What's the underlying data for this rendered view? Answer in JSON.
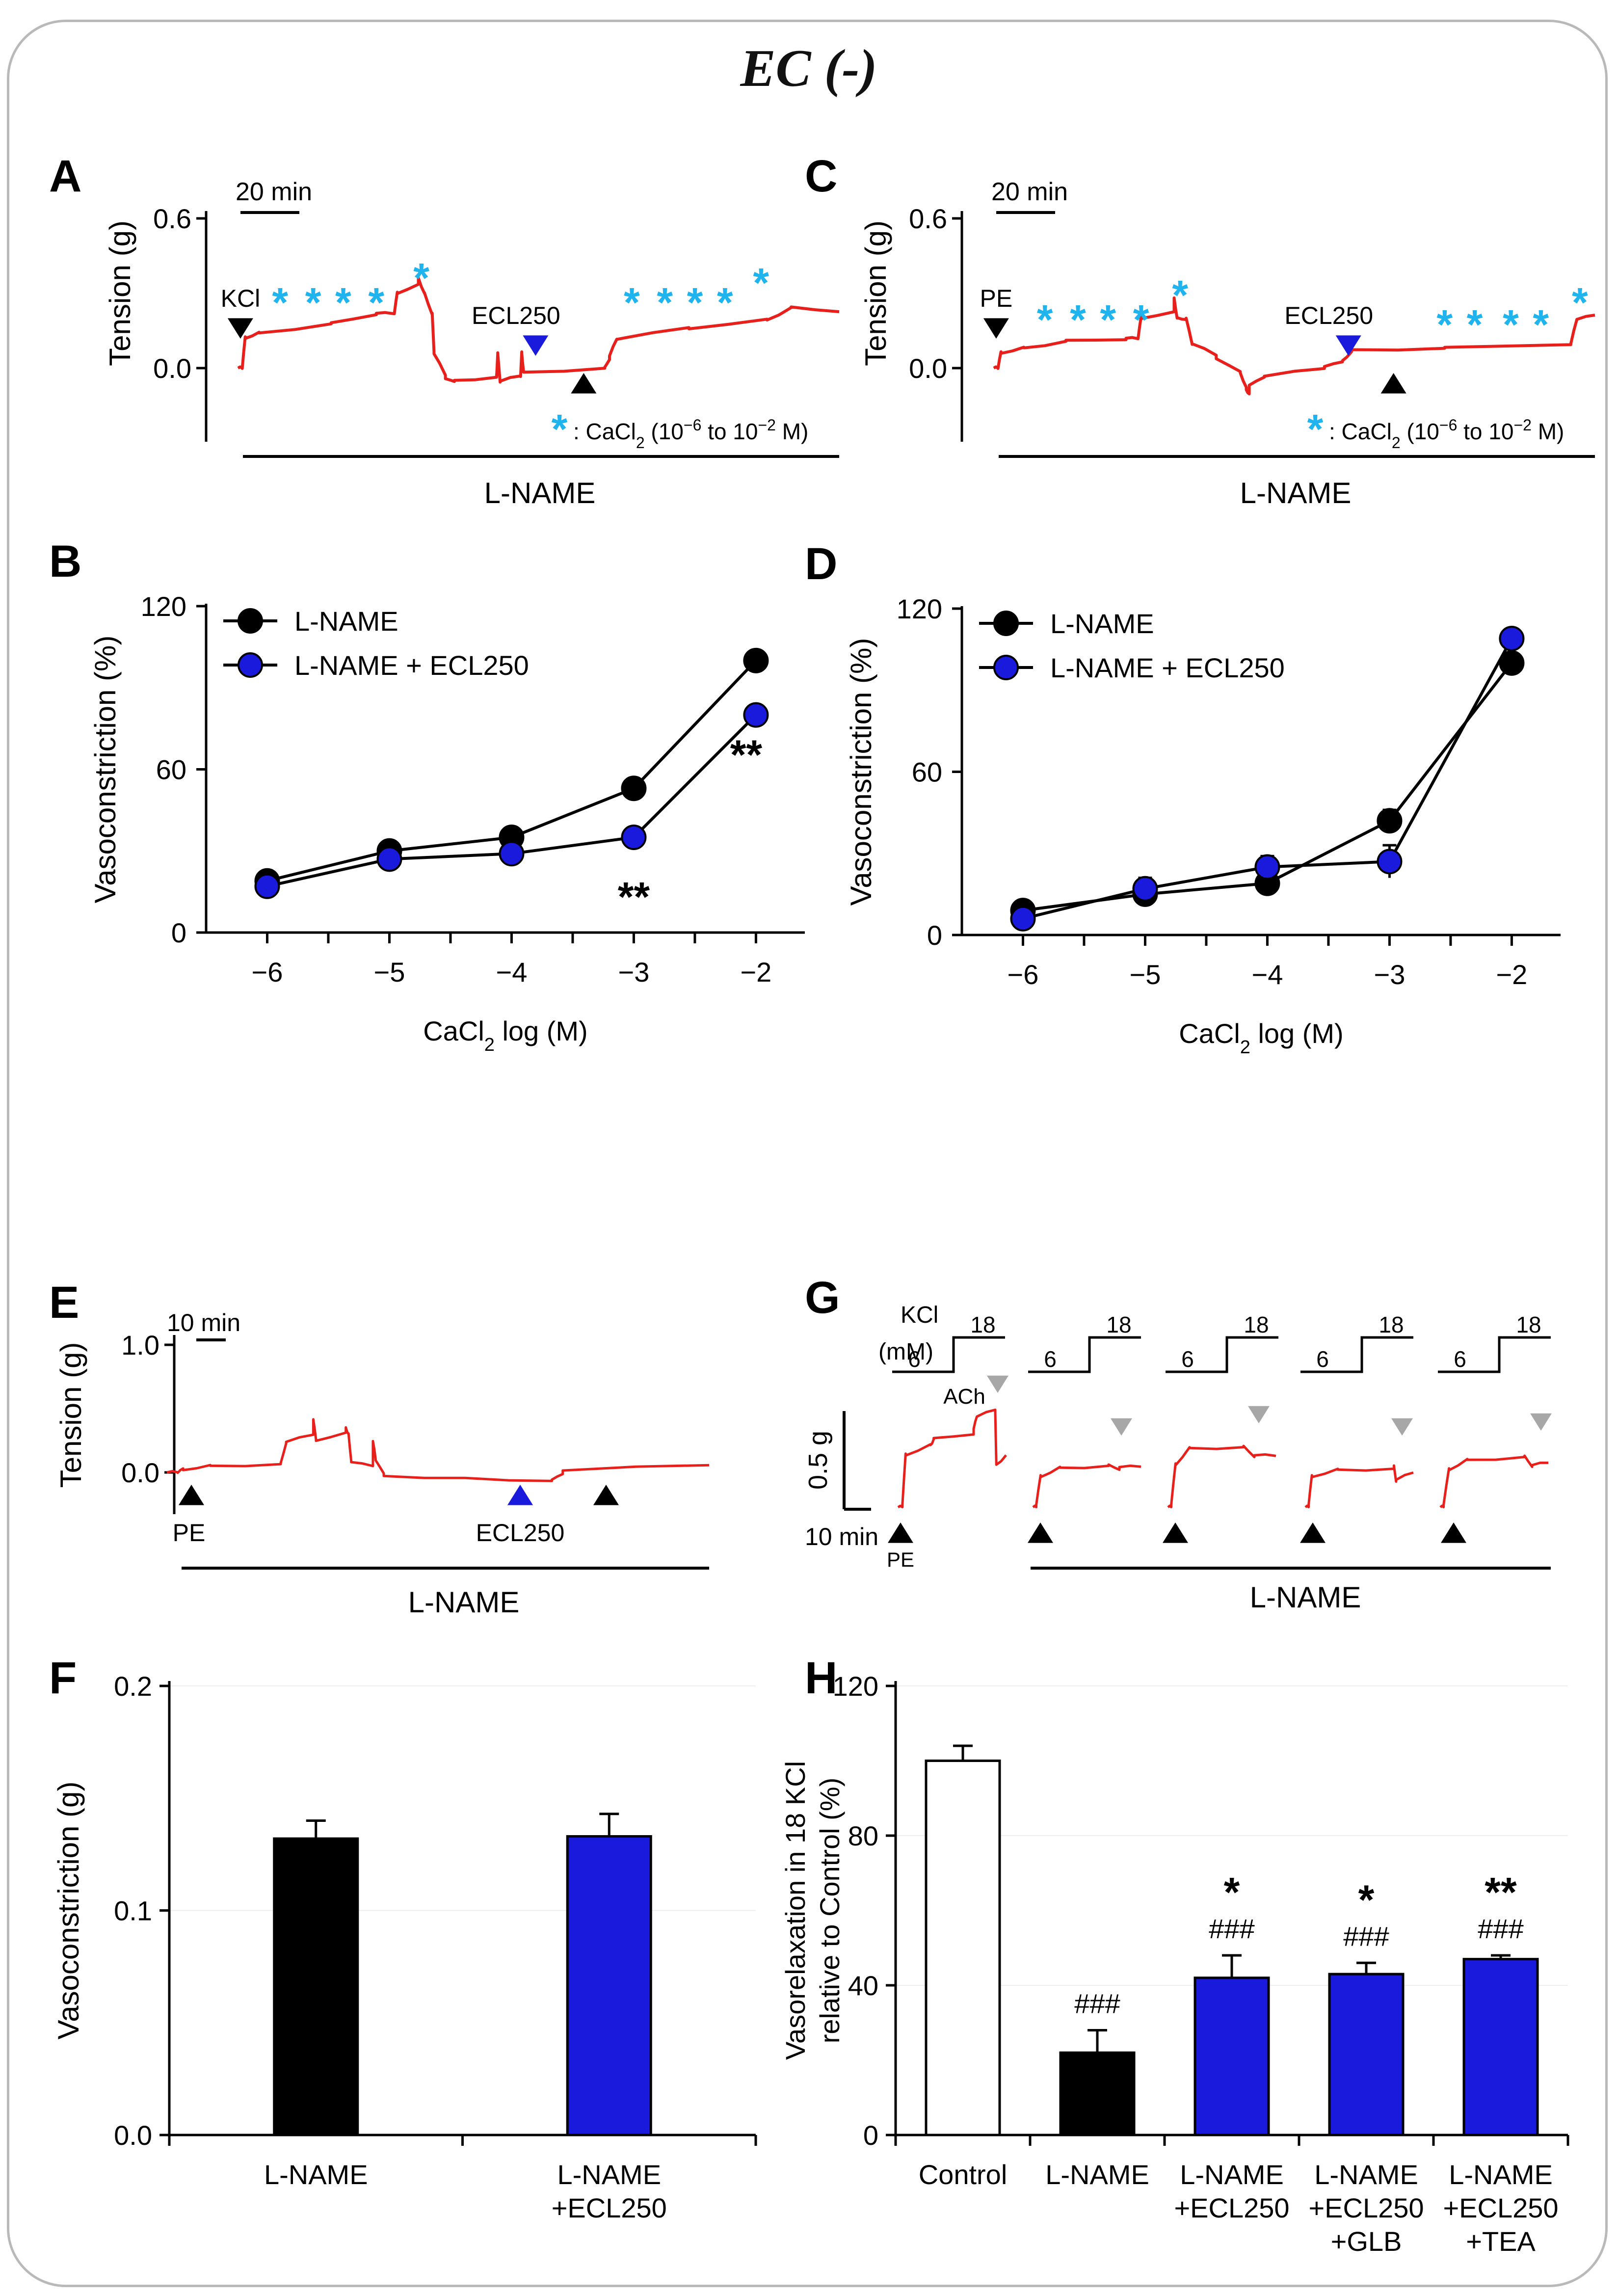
{
  "title": "EC (-)",
  "colors": {
    "red": "#e8201c",
    "blue": "#1a1adc",
    "cyan": "#1fb4ee",
    "black": "#000000",
    "gray": "#a7a7a7"
  },
  "panel_A": {
    "letter": "A",
    "ylabel": "Tension (g)",
    "yticks": [
      "0.6",
      "0.0"
    ],
    "scalebar": "20 min",
    "stim_label": "KCl",
    "drug_label": "ECL250",
    "star": "*",
    "note_prefix": ": CaCl",
    "note_sub": "2",
    "note_open": " (10",
    "note_exp": "−6",
    "note_mid": " to 10",
    "note_exp2": "−2",
    "note_close": " M)",
    "bar_label": "L-NAME"
  },
  "panel_C": {
    "letter": "C",
    "ylabel": "Tension (g)",
    "yticks": [
      "0.6",
      "0.0"
    ],
    "scalebar": "20 min",
    "stim_label": "PE",
    "drug_label": "ECL250",
    "star": "*",
    "note_prefix": ": CaCl",
    "note_sub": "2",
    "note_open": " (10",
    "note_exp": "−6",
    "note_mid": " to 10",
    "note_exp2": "−2",
    "note_close": " M)",
    "bar_label": "L-NAME"
  },
  "panel_E": {
    "letter": "E",
    "ylabel": "Tension (g)",
    "yticks": [
      "1.0",
      "0.0"
    ],
    "scalebar": "10 min",
    "stim_label": "PE",
    "drug_label": "ECL250",
    "bar_label": "L-NAME"
  },
  "panel_G": {
    "letter": "G",
    "kcl_label": "KCl",
    "kcl_unit": "(mM)",
    "kcl_low": "6",
    "kcl_high": "18",
    "ach_label": "ACh",
    "scale_y": "0.5 g",
    "scale_x": "10 min",
    "stim_label": "PE",
    "bar_label": "L-NAME"
  },
  "chart_data": [
    {
      "panel": "B",
      "type": "line",
      "ylabel": "Vasoconstriction (%)",
      "xlabel_main": "CaCl",
      "xlabel_sub": "2",
      "xlabel_tail": " log (M)",
      "x": [
        -6,
        -5,
        -4,
        -3,
        -2
      ],
      "xticks": [
        "−6",
        "−5",
        "−4",
        "−3",
        "−2"
      ],
      "ylim": [
        0,
        120
      ],
      "yticks": [
        0,
        60,
        120
      ],
      "series": [
        {
          "name": "L-NAME",
          "color": "#000000",
          "values": [
            19,
            30,
            35,
            53,
            100
          ],
          "errors": [
            1,
            2,
            2,
            1,
            1
          ]
        },
        {
          "name": "L-NAME + ECL250",
          "color": "#1a1adc",
          "values": [
            17,
            27,
            29,
            35,
            80
          ],
          "errors": [
            1,
            1,
            2,
            3,
            3
          ]
        }
      ],
      "annotations": [
        {
          "x": -3,
          "text": "**",
          "pos": "below"
        },
        {
          "x": -2,
          "text": "**",
          "pos": "below"
        }
      ]
    },
    {
      "panel": "D",
      "type": "line",
      "ylabel": "Vasoconstriction (%)",
      "xlabel_main": "CaCl",
      "xlabel_sub": "2",
      "xlabel_tail": " log (M)",
      "x": [
        -6,
        -5,
        -4,
        -3,
        -2
      ],
      "xticks": [
        "−6",
        "−5",
        "−4",
        "−3",
        "−2"
      ],
      "ylim": [
        0,
        120
      ],
      "yticks": [
        0,
        60,
        120
      ],
      "series": [
        {
          "name": "L-NAME",
          "color": "#000000",
          "values": [
            9,
            15,
            19,
            42,
            100
          ],
          "errors": [
            1,
            2,
            3,
            4,
            2
          ]
        },
        {
          "name": "L-NAME + ECL250",
          "color": "#1a1adc",
          "values": [
            6,
            17,
            25,
            27,
            109
          ],
          "errors": [
            1,
            4,
            4,
            6,
            3
          ]
        }
      ],
      "annotations": []
    },
    {
      "panel": "F",
      "type": "bar",
      "ylabel": "Vasoconstriction (g)",
      "categories": [
        [
          "L-NAME"
        ],
        [
          "L-NAME",
          "+ECL250"
        ]
      ],
      "values": [
        0.132,
        0.133
      ],
      "errors": [
        0.008,
        0.01
      ],
      "colors": [
        "#000000",
        "#1a1adc"
      ],
      "ylim": [
        0,
        0.2
      ],
      "yticks": [
        "0.0",
        "0.1",
        "0.2"
      ],
      "grid": true
    },
    {
      "panel": "H",
      "type": "bar",
      "ylabel": "Vasorelaxation in 18 KCl",
      "ylabel2": "relative to Control (%)",
      "categories": [
        [
          "Control"
        ],
        [
          "L-NAME"
        ],
        [
          "L-NAME",
          "+ECL250"
        ],
        [
          "L-NAME",
          "+ECL250",
          "+GLB"
        ],
        [
          "L-NAME",
          "+ECL250",
          "+TEA"
        ]
      ],
      "values": [
        100,
        22,
        42,
        43,
        47
      ],
      "errors": [
        4,
        6,
        6,
        3,
        1
      ],
      "colors": [
        "#ffffff",
        "#000000",
        "#1a1adc",
        "#1a1adc",
        "#1a1adc"
      ],
      "labels_hash": [
        "",
        "###",
        "###",
        "###",
        "###"
      ],
      "labels_star": [
        "",
        "",
        "*",
        "*",
        "**"
      ],
      "ylim": [
        0,
        120
      ],
      "yticks": [
        "0",
        "40",
        "80",
        "120"
      ],
      "grid": true
    }
  ]
}
